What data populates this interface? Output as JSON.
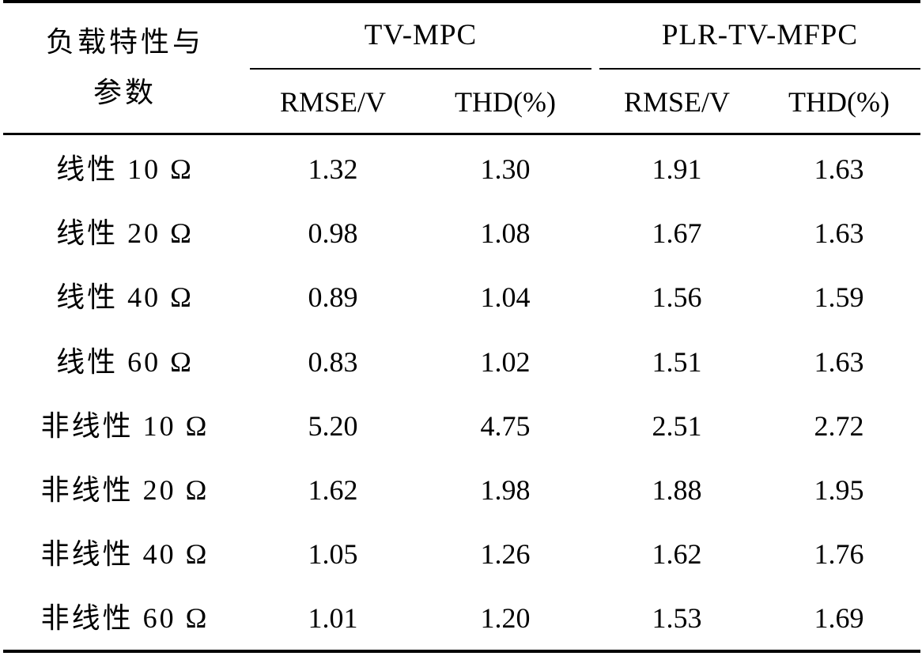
{
  "header": {
    "stub_line1": "负载特性与",
    "stub_line2": "参数",
    "group1": "TV-MPC",
    "group2": "PLR-TV-MFPC",
    "sub": [
      "RMSE/V",
      "THD(%)",
      "RMSE/V",
      "THD(%)"
    ]
  },
  "rows": [
    {
      "label": "线性 10 Ω",
      "values": [
        "1.32",
        "1.30",
        "1.91",
        "1.63"
      ]
    },
    {
      "label": "线性 20 Ω",
      "values": [
        "0.98",
        "1.08",
        "1.67",
        "1.63"
      ]
    },
    {
      "label": "线性 40 Ω",
      "values": [
        "0.89",
        "1.04",
        "1.56",
        "1.59"
      ]
    },
    {
      "label": "线性 60 Ω",
      "values": [
        "0.83",
        "1.02",
        "1.51",
        "1.63"
      ]
    },
    {
      "label": "非线性 10 Ω",
      "values": [
        "5.20",
        "4.75",
        "2.51",
        "2.72"
      ]
    },
    {
      "label": "非线性 20 Ω",
      "values": [
        "1.62",
        "1.98",
        "1.88",
        "1.95"
      ]
    },
    {
      "label": "非线性 40 Ω",
      "values": [
        "1.05",
        "1.26",
        "1.62",
        "1.76"
      ]
    },
    {
      "label": "非线性 60 Ω",
      "values": [
        "1.01",
        "1.20",
        "1.53",
        "1.69"
      ]
    }
  ]
}
